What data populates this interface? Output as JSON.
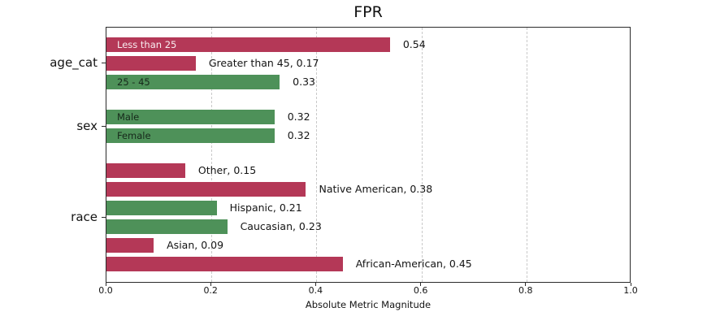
{
  "figure": {
    "title": "FPR",
    "xlabel": "Absolute Metric Magnitude"
  },
  "chart_data": {
    "type": "bar",
    "orientation": "horizontal",
    "title": "FPR",
    "xlabel": "Absolute Metric Magnitude",
    "xlim": [
      0.0,
      1.0
    ],
    "xtick_values": [
      0.0,
      0.2,
      0.4,
      0.6,
      0.8,
      1.0
    ],
    "xtick_labels": [
      "0.0",
      "0.2",
      "0.4",
      "0.6",
      "0.8",
      "1.0"
    ],
    "grid": "vertical-dashed",
    "legend": "none",
    "colors": {
      "red": "#b43857",
      "green": "#4e9159"
    },
    "groups": [
      {
        "label": "age_cat",
        "bars": [
          {
            "name": "Less than 25",
            "value": 0.54,
            "color": "red",
            "inside_label": "Less than 25",
            "outside_label": "0.54"
          },
          {
            "name": "Greater than 45",
            "value": 0.17,
            "color": "red",
            "inside_label": null,
            "outside_label": "Greater than 45, 0.17"
          },
          {
            "name": "25 - 45",
            "value": 0.33,
            "color": "green",
            "inside_label": "25 - 45",
            "outside_label": "0.33"
          }
        ]
      },
      {
        "label": "sex",
        "bars": [
          {
            "name": "Male",
            "value": 0.32,
            "color": "green",
            "inside_label": "Male",
            "outside_label": "0.32"
          },
          {
            "name": "Female",
            "value": 0.32,
            "color": "green",
            "inside_label": "Female",
            "outside_label": "0.32"
          }
        ]
      },
      {
        "label": "race",
        "bars": [
          {
            "name": "Other",
            "value": 0.15,
            "color": "red",
            "inside_label": null,
            "outside_label": "Other, 0.15"
          },
          {
            "name": "Native American",
            "value": 0.38,
            "color": "red",
            "inside_label": null,
            "outside_label": "Native American, 0.38"
          },
          {
            "name": "Hispanic",
            "value": 0.21,
            "color": "green",
            "inside_label": null,
            "outside_label": "Hispanic, 0.21"
          },
          {
            "name": "Caucasian",
            "value": 0.23,
            "color": "green",
            "inside_label": null,
            "outside_label": "Caucasian, 0.23"
          },
          {
            "name": "Asian",
            "value": 0.09,
            "color": "red",
            "inside_label": null,
            "outside_label": "Asian, 0.09"
          },
          {
            "name": "African-American",
            "value": 0.45,
            "color": "red",
            "inside_label": null,
            "outside_label": "African-American, 0.45"
          }
        ]
      }
    ]
  }
}
